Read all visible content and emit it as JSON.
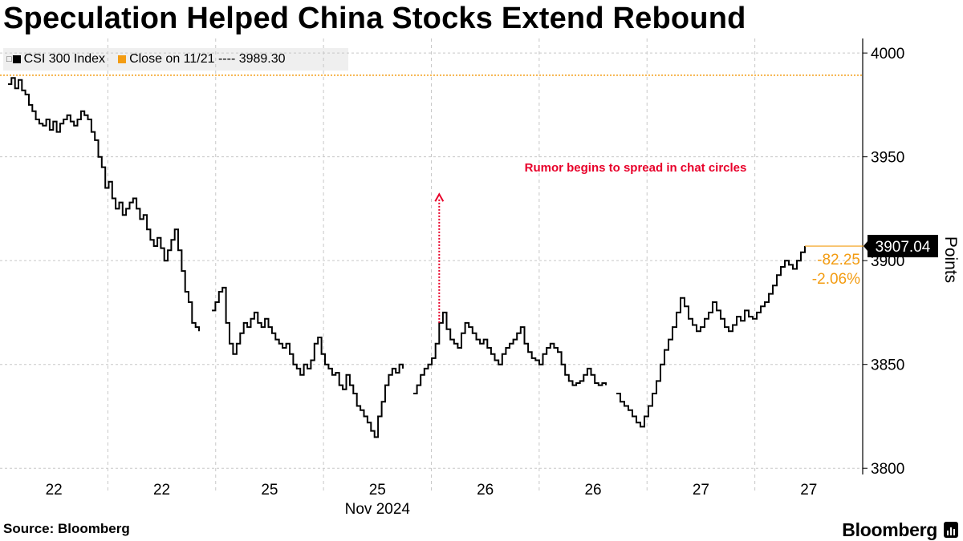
{
  "title": "Speculation Helped China Stocks Extend Rebound",
  "footer": {
    "source": "Source: Bloomberg",
    "brand": "Bloomberg"
  },
  "legend": {
    "series_label": "CSI 300 Index",
    "reference_label": "Close on 11/21 ---- 3989.30"
  },
  "colors": {
    "series": "#000000",
    "reference": "#f39c12",
    "annotation": "#e8002a",
    "grid": "#c8c8c8"
  },
  "chart_data": {
    "type": "line",
    "title": "Speculation Helped China Stocks Extend Rebound",
    "ylabel": "Points",
    "xlabel": "Nov 2024",
    "ylim": [
      3797,
      4007
    ],
    "yticks": [
      3800,
      3850,
      3900,
      3950,
      4000
    ],
    "xticks": [
      "22",
      "22",
      "25",
      "25",
      "26",
      "26",
      "27",
      "27"
    ],
    "x_month_label": "Nov 2024",
    "reference_line": {
      "label": "Close on 11/21",
      "value": 3989.3
    },
    "last_value": "3907.04",
    "change_abs": "-82.25",
    "change_pct": "-2.06%",
    "annotation": {
      "text": "Rumor begins to spread in chat circles",
      "at_index": 118,
      "arrow_to_value": 3932
    },
    "series": [
      {
        "name": "CSI 300 Index",
        "segments": [
          [
            3985,
            3988,
            3983,
            3987,
            3982,
            3980,
            3975,
            3972,
            3968,
            3966,
            3965,
            3968,
            3963,
            3967,
            3962,
            3966,
            3968,
            3970,
            3967,
            3965,
            3968,
            3972,
            3970,
            3968,
            3962,
            3958,
            3950,
            3945,
            3935,
            3938,
            3930,
            3925,
            3928,
            3922,
            3925,
            3928,
            3930,
            3925,
            3920,
            3922,
            3915,
            3910,
            3907,
            3911,
            3906,
            3900,
            3905,
            3910,
            3915,
            3905,
            3895,
            3885,
            3880,
            3870,
            3868,
            3866
          ],
          [
            3876,
            3880,
            3885,
            3887,
            3870,
            3860,
            3855,
            3860,
            3865,
            3870,
            3868,
            3872,
            3875,
            3870,
            3868,
            3872,
            3868,
            3865,
            3862,
            3860,
            3858,
            3860,
            3855,
            3850,
            3848,
            3845,
            3850,
            3848,
            3852,
            3860,
            3863,
            3855,
            3850,
            3848,
            3845,
            3846,
            3840,
            3838,
            3845,
            3840,
            3836,
            3830,
            3828,
            3825,
            3822,
            3818,
            3815,
            3825,
            3832,
            3840,
            3845,
            3848,
            3846,
            3850,
            3848
          ],
          [
            3836,
            3840,
            3845,
            3848,
            3850,
            3853,
            3860,
            3870,
            3875,
            3867,
            3862,
            3860,
            3858,
            3865,
            3870,
            3868,
            3865,
            3862,
            3860,
            3862,
            3858,
            3855,
            3852,
            3850,
            3855,
            3858,
            3860,
            3862,
            3865,
            3868,
            3860,
            3856,
            3853,
            3852,
            3850,
            3855,
            3858,
            3860,
            3858,
            3856,
            3850,
            3845,
            3842,
            3840,
            3841,
            3842,
            3845,
            3848,
            3845,
            3841,
            3840,
            3841,
            3840
          ],
          [
            3836,
            3832,
            3830,
            3828,
            3825,
            3822,
            3820,
            3825,
            3830,
            3836,
            3842,
            3850,
            3857,
            3862,
            3868,
            3875,
            3882,
            3878,
            3872,
            3869,
            3866,
            3868,
            3872,
            3875,
            3880,
            3876,
            3872,
            3868,
            3866,
            3869,
            3873,
            3871,
            3876,
            3873,
            3872,
            3875,
            3878,
            3880,
            3884,
            3888,
            3893,
            3897,
            3900,
            3898,
            3896,
            3900,
            3904,
            3907
          ]
        ]
      }
    ]
  }
}
